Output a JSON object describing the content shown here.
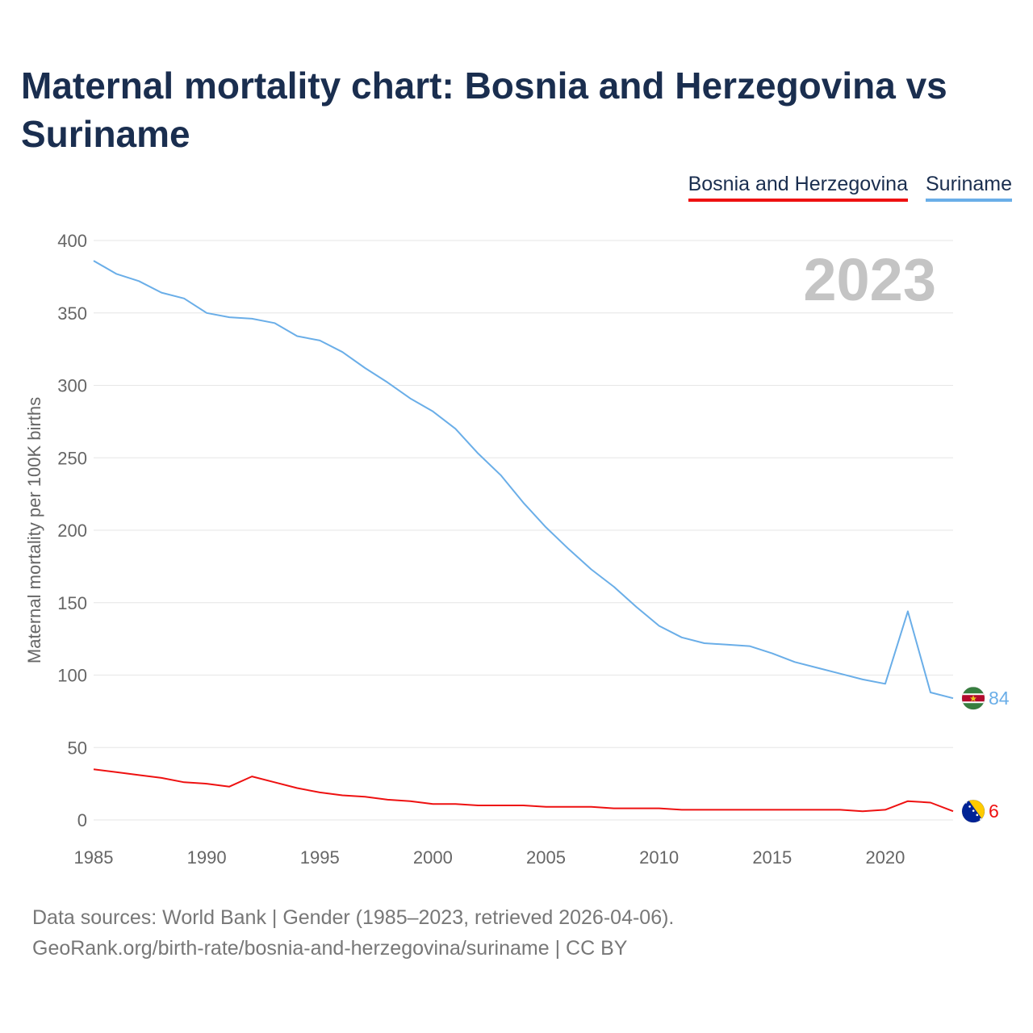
{
  "title": "Maternal mortality chart: Bosnia and Herzegovina vs Suriname",
  "legend": {
    "bih": "Bosnia and Herzegovina",
    "sur": "Suriname"
  },
  "footer": {
    "line1": "Data sources: World Bank | Gender (1985–2023, retrieved 2026-04-06).",
    "line2": "GeoRank.org/birth-rate/bosnia-and-herzegovina/suriname | CC BY"
  },
  "colors": {
    "bih": "#ee1111",
    "sur": "#6aaee8",
    "grid": "#e6e6e6",
    "axis_text": "#666666",
    "year_watermark": "#c4c4c4"
  },
  "chart_data": {
    "type": "line",
    "title": "Maternal mortality chart: Bosnia and Herzegovina vs Suriname",
    "xlabel": "",
    "ylabel": "Maternal mortality per 100K births",
    "year_label": "2023",
    "xlim": [
      1985,
      2023
    ],
    "ylim": [
      0,
      400
    ],
    "x_ticks": [
      1985,
      1990,
      1995,
      2000,
      2005,
      2010,
      2015,
      2020
    ],
    "y_ticks": [
      0,
      50,
      100,
      150,
      200,
      250,
      300,
      350,
      400
    ],
    "x": [
      1985,
      1986,
      1987,
      1988,
      1989,
      1990,
      1991,
      1992,
      1993,
      1994,
      1995,
      1996,
      1997,
      1998,
      1999,
      2000,
      2001,
      2002,
      2003,
      2004,
      2005,
      2006,
      2007,
      2008,
      2009,
      2010,
      2011,
      2012,
      2013,
      2014,
      2015,
      2016,
      2017,
      2018,
      2019,
      2020,
      2021,
      2022,
      2023
    ],
    "series": [
      {
        "key": "sur",
        "name": "Suriname",
        "end_label": "84",
        "values": [
          386,
          377,
          372,
          364,
          360,
          350,
          347,
          346,
          343,
          334,
          331,
          323,
          312,
          302,
          291,
          282,
          270,
          253,
          238,
          219,
          202,
          187,
          173,
          161,
          147,
          134,
          126,
          122,
          121,
          120,
          115,
          109,
          105,
          101,
          97,
          94,
          144,
          88,
          84
        ]
      },
      {
        "key": "bih",
        "name": "Bosnia and Herzegovina",
        "end_label": "6",
        "values": [
          35,
          33,
          31,
          29,
          26,
          25,
          23,
          30,
          26,
          22,
          19,
          17,
          16,
          14,
          13,
          11,
          11,
          10,
          10,
          10,
          9,
          9,
          9,
          8,
          8,
          8,
          7,
          7,
          7,
          7,
          7,
          7,
          7,
          7,
          6,
          7,
          13,
          12,
          6
        ]
      }
    ]
  }
}
